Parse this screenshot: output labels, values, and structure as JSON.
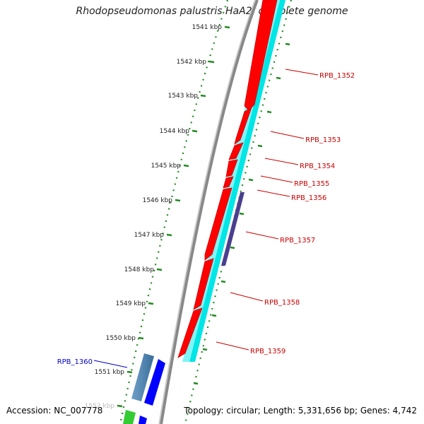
{
  "title": "Rhodopseudomonas palustris HaA2, complete genome",
  "footer": {
    "accession": "Accession: NC_007778",
    "topology": "Topology: circular; Length: 5,331,656 bp; Genes: 4,742"
  },
  "scale_labels": [
    {
      "text": "1541 kbp",
      "kbp": 1541
    },
    {
      "text": "1542 kbp",
      "kbp": 1542
    },
    {
      "text": "1543 kbp",
      "kbp": 1543
    },
    {
      "text": "1544 kbp",
      "kbp": 1544
    },
    {
      "text": "1545 kbp",
      "kbp": 1545
    },
    {
      "text": "1546 kbp",
      "kbp": 1546
    },
    {
      "text": "1547 kbp",
      "kbp": 1547
    },
    {
      "text": "1548 kbp",
      "kbp": 1548
    },
    {
      "text": "1549 kbp",
      "kbp": 1549
    },
    {
      "text": "1550 kbp",
      "kbp": 1550
    },
    {
      "text": "1551 kbp",
      "kbp": 1551
    },
    {
      "text": "1552 kbp",
      "kbp": 1552
    }
  ],
  "genes": [
    {
      "label": "RPB_1352",
      "color": "#cc0000"
    },
    {
      "label": "RPB_1353",
      "color": "#cc0000"
    },
    {
      "label": "RPB_1354",
      "color": "#cc0000"
    },
    {
      "label": "RPB_1355",
      "color": "#cc0000"
    },
    {
      "label": "RPB_1356",
      "color": "#cc0000"
    },
    {
      "label": "RPB_1357",
      "color": "#cc0000"
    },
    {
      "label": "RPB_1358",
      "color": "#cc0000"
    },
    {
      "label": "RPB_1359",
      "color": "#cc0000"
    },
    {
      "label": "RPB_1360",
      "color": "#0000cc"
    }
  ],
  "colors": {
    "cds_forward": "#ff0000",
    "gene_track": "#00ffff",
    "misc_feature": "#4a3f8f",
    "cds_reverse": "#0000ff",
    "blue_feature": "#4682b4",
    "green_feature": "#33cc33",
    "backbone": "#888888",
    "tick": "#228b22"
  }
}
